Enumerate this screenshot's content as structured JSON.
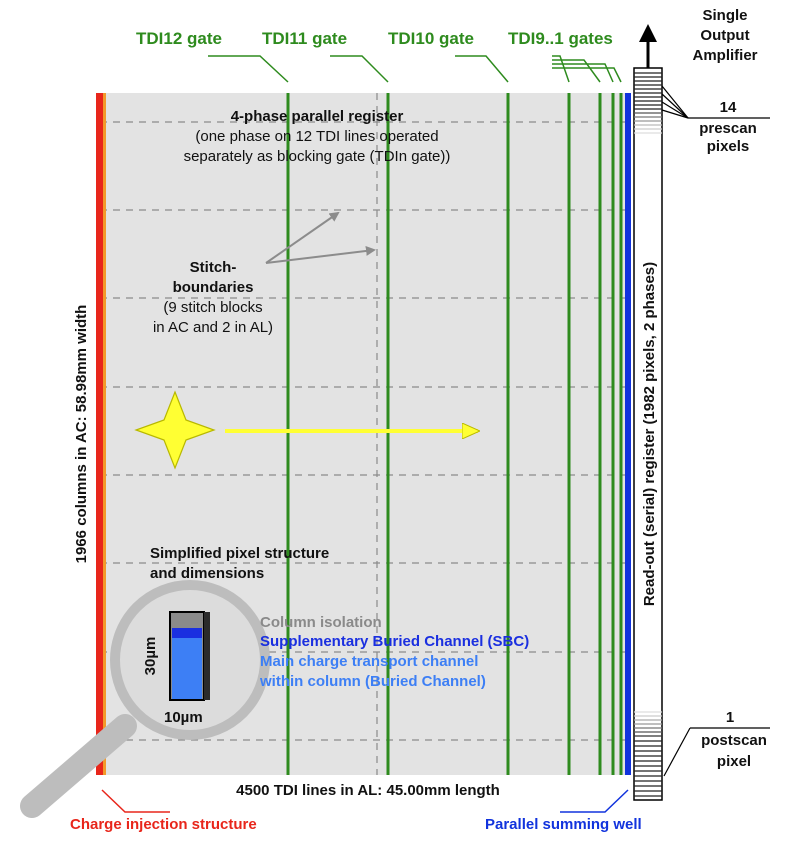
{
  "colors": {
    "tdi_green": "#2e8b1e",
    "injection_red": "#e8261b",
    "summing_blue": "#1133dd",
    "sbc_blue": "#1a2fe0",
    "buried_blue": "#3d7ff5",
    "isolation_gray": "#8a8a8a",
    "register_gray": "#e3e3e3",
    "star_yellow": "#ffff33",
    "arrow_yellow": "#ffff33"
  },
  "gates": {
    "tdi12": "TDI12 gate",
    "tdi11": "TDI11 gate",
    "tdi10": "TDI10 gate",
    "tdi9_1": "TDI9..1 gates"
  },
  "amplifier": {
    "line1": "Single",
    "line2": "Output",
    "line3": "Amplifier"
  },
  "prescan": {
    "count": "14",
    "line1": "prescan",
    "line2": "pixels"
  },
  "postscan": {
    "count": "1",
    "line1": "postscan",
    "line2": "pixel"
  },
  "parallel_register": {
    "title": "4-phase parallel register",
    "line2": "(one phase on 12 TDI lines operated",
    "line3": "separately as blocking gate (TDIn gate))"
  },
  "stitch": {
    "line1": "Stitch-",
    "line2": "boundaries",
    "line3": "(9 stitch blocks",
    "line4": "in AC and 2 in AL)"
  },
  "columns_label": "1966 columns in AC:  58.98mm width",
  "readout_label": "Read-out (serial) register (1982 pixels, 2 phases)",
  "tdi_lines_label": "4500 TDI lines in AL:   45.00mm length",
  "pixel_structure": {
    "line1": "Simplified pixel structure",
    "line2": "and dimensions",
    "height": "30µm",
    "width": "10µm"
  },
  "legend": {
    "column_isolation": "Column isolation",
    "sbc": "Supplementary Buried Channel (SBC)",
    "main1": "Main charge transport channel",
    "main2": "within column (Buried Channel)"
  },
  "bottom": {
    "charge_injection": "Charge injection structure",
    "summing_well": "Parallel summing well"
  }
}
